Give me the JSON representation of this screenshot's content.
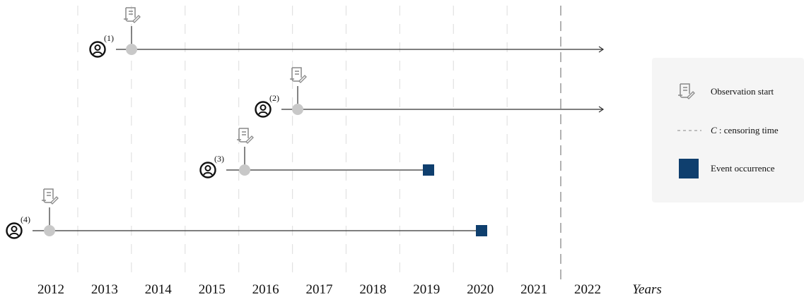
{
  "axis": {
    "years": [
      "2012",
      "2013",
      "2014",
      "2015",
      "2016",
      "2017",
      "2018",
      "2019",
      "2020",
      "2021",
      "2022"
    ],
    "label": "Years"
  },
  "subjects": [
    {
      "label": "(1)"
    },
    {
      "label": "(2)"
    },
    {
      "label": "(3)"
    },
    {
      "label": "(4)"
    }
  ],
  "legend": {
    "observation": "Observation start",
    "censoring_symbol": "C",
    "censoring": ": censoring time",
    "event": "Event occurrence"
  }
}
